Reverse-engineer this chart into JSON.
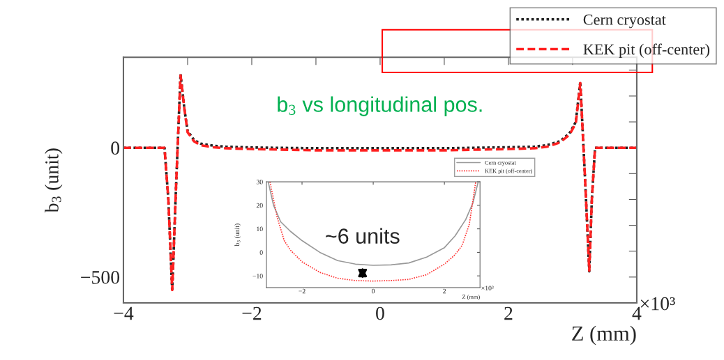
{
  "chart_data": [
    {
      "type": "line",
      "xlabel": "Z (mm)",
      "ylabel": "b$_{3}$ (unit)",
      "annotations": [
        "b$_{3}$ vs longitudinal pos.",
        "×10³"
      ],
      "xlim": [
        -4,
        4
      ],
      "ylim": [
        -600,
        350
      ],
      "xticks": [
        -4,
        {
          "value": -3,
          "label": null
        },
        -2,
        {
          "value": -1,
          "label": null
        },
        0,
        {
          "value": 1,
          "label": null
        },
        2,
        {
          "value": 3,
          "label": null
        },
        4
      ],
      "yticks": [
        {
          "value": -600,
          "label": null
        },
        -500,
        {
          "value": -400,
          "label": null
        },
        {
          "value": -300,
          "label": null
        },
        {
          "value": -200,
          "label": null
        },
        {
          "value": -100,
          "label": null
        },
        0,
        {
          "value": 100,
          "label": null
        },
        {
          "value": 200,
          "label": null
        },
        {
          "value": 300,
          "label": null
        }
      ],
      "legend": "top right",
      "grid": false,
      "series": [
        {
          "name": "Cern cryostat",
          "color": "#222222",
          "line_style": "dotted",
          "x": [
            -4,
            -3.36,
            -3.3,
            -3.24,
            -3.18,
            -3.11,
            -3.05,
            -3.0,
            -2.9,
            -2.8,
            -2.6,
            -2.4,
            -2,
            -1,
            0,
            1,
            2,
            2.4,
            2.6,
            2.8,
            2.95,
            3.05,
            3.12,
            3.2,
            3.26,
            3.3,
            3.35,
            4
          ],
          "values": [
            0,
            0,
            -200,
            -555,
            -150,
            285,
            150,
            65,
            30,
            16,
            8,
            4,
            1,
            -2,
            -2,
            -2,
            2,
            4,
            10,
            25,
            55,
            100,
            255,
            -150,
            -478,
            -200,
            0,
            0
          ]
        },
        {
          "name": "KEK pit (off-center)",
          "color": "#ff2020",
          "line_style": "dashed",
          "x": [
            -4,
            -3.36,
            -3.3,
            -3.24,
            -3.18,
            -3.11,
            -3.05,
            -3.0,
            -2.9,
            -2.8,
            -2.6,
            -2.4,
            -2,
            -1,
            0,
            1,
            2,
            2.4,
            2.6,
            2.8,
            2.95,
            3.05,
            3.12,
            3.2,
            3.26,
            3.3,
            3.35,
            4
          ],
          "values": [
            0,
            0,
            -200,
            -550,
            -150,
            280,
            150,
            60,
            25,
            10,
            2,
            -2,
            -5,
            -10,
            -10,
            -10,
            -5,
            -2,
            4,
            20,
            50,
            95,
            250,
            -150,
            -475,
            -200,
            0,
            0
          ]
        }
      ]
    },
    {
      "type": "line",
      "xlabel": "Z (mm)",
      "ylabel": "b$_{3}$ (unit)",
      "annotations": [
        {
          "text": "~6 units",
          "x": -0.3,
          "y": -5.5
        },
        "×10³"
      ],
      "xlim": [
        -3,
        3
      ],
      "ylim": [
        -15,
        30
      ],
      "xticks": [
        -2,
        0,
        2
      ],
      "yticks": [
        -10,
        0,
        10,
        20,
        30
      ],
      "legend": "top right",
      "grid": false,
      "series": [
        {
          "name": "Cern cryostat",
          "color": "#999999",
          "line_style": "solid",
          "x": [
            -2.95,
            -2.8,
            -2.6,
            -2.33,
            -2,
            -1.5,
            -1,
            -0.5,
            0,
            0.5,
            1,
            1.5,
            2,
            2.3,
            2.6,
            2.8,
            2.95
          ],
          "values": [
            30,
            20,
            13,
            9,
            5,
            0,
            -3.5,
            -5,
            -5.5,
            -5.3,
            -4.5,
            -2,
            2,
            7,
            14,
            21,
            30
          ]
        },
        {
          "name": "KEK pit (off-center)",
          "color": "#ff3333",
          "line_style": "dotted",
          "x": [
            -2.9,
            -2.7,
            -2.5,
            -2.33,
            -2,
            -1.5,
            -1,
            -0.5,
            0,
            0.5,
            1,
            1.5,
            2,
            2.3,
            2.5,
            2.7,
            2.88
          ],
          "values": [
            30,
            15,
            5,
            1,
            -4,
            -8.5,
            -11,
            -12,
            -12.2,
            -12,
            -11.5,
            -9.5,
            -5,
            -1,
            3,
            12,
            30
          ]
        }
      ]
    }
  ]
}
